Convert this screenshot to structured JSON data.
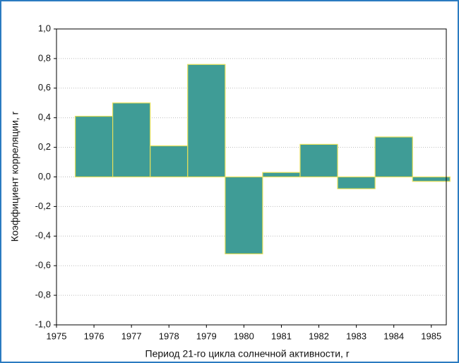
{
  "chart_data": {
    "type": "bar",
    "x_label": "Период 21-го цикла солнечной активности, r",
    "y_label": "Коэффициент корреляции, r",
    "x": [
      1976,
      1977,
      1978,
      1979,
      1980,
      1981,
      1982,
      1983,
      1984,
      1985
    ],
    "values": [
      0.41,
      0.5,
      0.21,
      0.76,
      -0.52,
      0.03,
      0.22,
      -0.08,
      0.27,
      -0.03
    ],
    "color": "#3f9c96",
    "edge_color": "#e6e05a",
    "xlim": [
      1975,
      1985.4
    ],
    "xticks": [
      1975,
      1976,
      1977,
      1978,
      1979,
      1980,
      1981,
      1982,
      1983,
      1984,
      1985
    ],
    "ylim": [
      -1.0,
      1.0
    ],
    "yticks": [
      {
        "value": -1.0,
        "label": "-1,0"
      },
      {
        "value": -0.8,
        "label": "-0,8"
      },
      {
        "value": -0.6,
        "label": "-0,6"
      },
      {
        "value": -0.4,
        "label": "-0,4"
      },
      {
        "value": -0.2,
        "label": "-0,2"
      },
      {
        "value": 0.0,
        "label": "0,0"
      },
      {
        "value": 0.2,
        "label": "0,2"
      },
      {
        "value": 0.4,
        "label": "0,4"
      },
      {
        "value": 0.6,
        "label": "0,6"
      },
      {
        "value": 0.8,
        "label": "0,8"
      },
      {
        "value": 1.0,
        "label": "1,0"
      }
    ],
    "grid": true
  }
}
